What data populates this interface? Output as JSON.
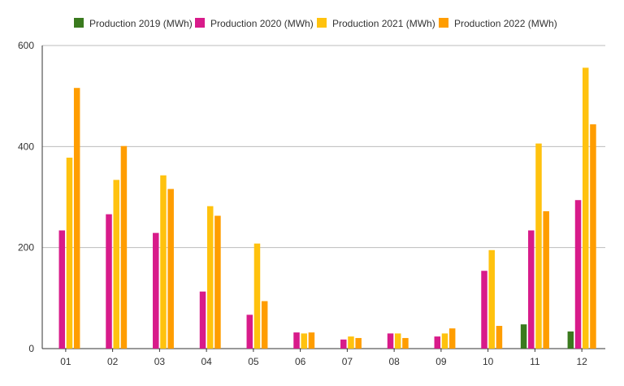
{
  "chart_data": {
    "type": "bar",
    "categories": [
      "01",
      "02",
      "03",
      "04",
      "05",
      "06",
      "07",
      "08",
      "09",
      "10",
      "11",
      "12"
    ],
    "series": [
      {
        "name": "Production 2019 (MWh)",
        "color": "#3a7a1e",
        "values": [
          null,
          null,
          null,
          null,
          null,
          null,
          null,
          null,
          null,
          null,
          48,
          34
        ]
      },
      {
        "name": "Production 2020 (MWh)",
        "color": "#d81b8a",
        "values": [
          234,
          266,
          229,
          113,
          67,
          32,
          18,
          30,
          24,
          154,
          234,
          294
        ]
      },
      {
        "name": "Production 2021 (MWh)",
        "color": "#ffc20e",
        "values": [
          378,
          334,
          343,
          282,
          208,
          30,
          24,
          30,
          30,
          195,
          406,
          556
        ]
      },
      {
        "name": "Production 2022 (MWh)",
        "color": "#ff9d00",
        "values": [
          516,
          401,
          316,
          263,
          94,
          32,
          21,
          21,
          40,
          45,
          272,
          444
        ]
      }
    ],
    "ylim": [
      0,
      600
    ],
    "yticks": [
      "0",
      "200",
      "400",
      "600"
    ],
    "grid": true,
    "legend": "top"
  }
}
